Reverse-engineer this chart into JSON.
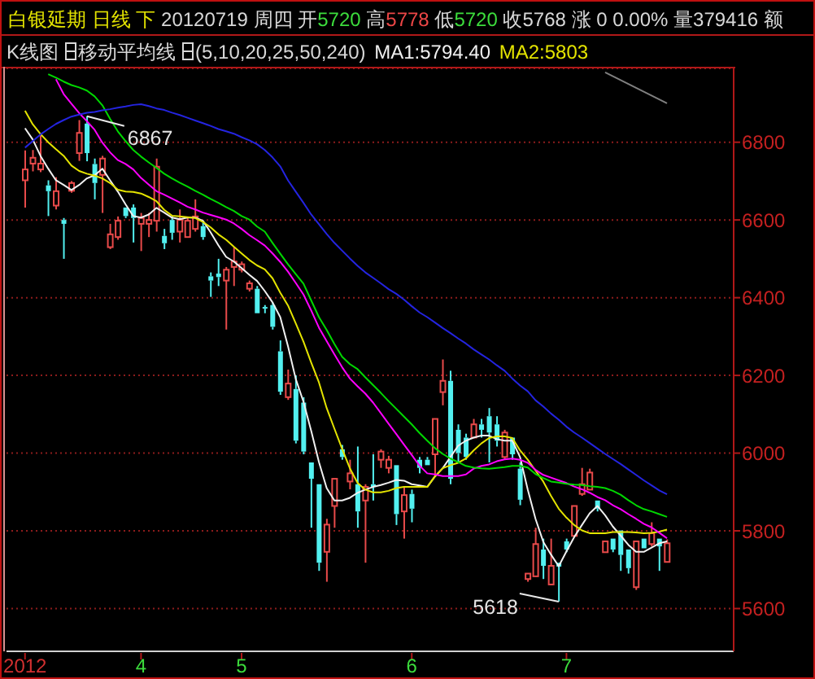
{
  "chart_data": {
    "type": "candlestick",
    "title": "白银延期 日线 下",
    "subtitle": "20120719 周四 开5720 高5778 低5720 收5768 涨 0 0.00% 量379416 额",
    "annotations": [
      "K线图",
      "移动平均线",
      "(5,10,20,25,50,240)",
      "6867",
      "5618"
    ],
    "categories": [
      "2012",
      null,
      null,
      null,
      null,
      null,
      null,
      null,
      null,
      null,
      null,
      null,
      null,
      null,
      null,
      "4",
      null,
      null,
      null,
      null,
      null,
      null,
      null,
      null,
      null,
      null,
      null,
      null,
      "5",
      null,
      null,
      null,
      null,
      null,
      null,
      null,
      null,
      null,
      null,
      null,
      null,
      null,
      null,
      null,
      null,
      null,
      null,
      null,
      null,
      null,
      "6",
      null,
      null,
      null,
      null,
      null,
      null,
      null,
      null,
      null,
      null,
      null,
      null,
      null,
      null,
      null,
      null,
      null,
      null,
      null,
      "7",
      null,
      null,
      null,
      null,
      null,
      null,
      null,
      null,
      null,
      null,
      null,
      null,
      null
    ],
    "ohlc": [
      [
        6702,
        6779,
        6632,
        6730
      ],
      [
        6745,
        6780,
        6725,
        6760
      ],
      [
        6730,
        6820,
        6723,
        6745
      ],
      [
        6689,
        6702,
        6610,
        6674
      ],
      [
        6637,
        6710,
        6627,
        6674
      ],
      [
        6600,
        6605,
        6500,
        6590
      ],
      [
        6675,
        6700,
        6670,
        6695
      ],
      [
        6772,
        6857,
        6752,
        6824
      ],
      [
        6848,
        6867,
        6751,
        6772
      ],
      [
        6744,
        6758,
        6653,
        6695
      ],
      [
        6716,
        6765,
        6618,
        6758
      ],
      [
        6530,
        6590,
        6525,
        6563
      ],
      [
        6556,
        6609,
        6549,
        6598
      ],
      [
        6632,
        6635,
        6605,
        6610
      ],
      [
        6632,
        6640,
        6542,
        6605
      ],
      [
        6590,
        6618,
        6520,
        6605
      ],
      [
        6590,
        6618,
        6556,
        6600
      ],
      [
        6598,
        6758,
        6570,
        6737
      ],
      [
        6559,
        6577,
        6525,
        6540
      ],
      [
        6600,
        6609,
        6549,
        6567
      ],
      [
        6570,
        6627,
        6542,
        6600
      ],
      [
        6556,
        6605,
        6553,
        6598
      ],
      [
        6577,
        6653,
        6570,
        6609
      ],
      [
        6584,
        6598,
        6549,
        6556
      ],
      [
        6455,
        6465,
        6402,
        6444
      ],
      [
        6462,
        6500,
        6430,
        6453
      ],
      [
        6444,
        6479,
        6318,
        6472
      ],
      [
        6479,
        6531,
        6430,
        6493
      ],
      [
        6472,
        6493,
        6465,
        6486
      ],
      [
        6423,
        6444,
        6416,
        6437
      ],
      [
        6423,
        6430,
        6360,
        6360
      ],
      [
        6376,
        6381,
        6360,
        6372
      ],
      [
        6381,
        6388,
        6318,
        6325
      ],
      [
        6262,
        6290,
        6150,
        6158
      ],
      [
        6144,
        6215,
        6137,
        6179
      ],
      [
        6165,
        6200,
        6025,
        6032
      ],
      [
        6130,
        6144,
        5997,
        6004
      ],
      [
        5976,
        5976,
        5808,
        5934
      ],
      [
        5920,
        5920,
        5697,
        5718
      ],
      [
        5746,
        5831,
        5669,
        5816
      ],
      [
        5864,
        5934,
        5808,
        5934
      ],
      [
        6010,
        6021,
        5983,
        5990
      ],
      [
        5927,
        5983,
        5907,
        5948
      ],
      [
        5920,
        6017,
        5808,
        5850
      ],
      [
        5878,
        5920,
        5718,
        5913
      ],
      [
        5920,
        5997,
        5878,
        5913
      ],
      [
        5983,
        6010,
        5962,
        6004
      ],
      [
        5962,
        5993,
        5948,
        5983
      ],
      [
        5969,
        5969,
        5815,
        5843
      ],
      [
        5850,
        5913,
        5780,
        5892
      ],
      [
        5895,
        5906,
        5822,
        5857
      ],
      [
        5983,
        5990,
        5948,
        5962
      ],
      [
        5983,
        5990,
        5966,
        5969
      ],
      [
        5997,
        6088,
        5941,
        6088
      ],
      [
        6157,
        6241,
        6123,
        6186
      ],
      [
        6186,
        6212,
        5920,
        5934
      ],
      [
        6060,
        6074,
        5976,
        6000
      ],
      [
        6040,
        6050,
        5983,
        5990
      ],
      [
        6040,
        6088,
        6040,
        6074
      ],
      [
        6074,
        6088,
        6040,
        6060
      ],
      [
        6095,
        6116,
        5976,
        6053
      ],
      [
        6074,
        6095,
        6017,
        6032
      ],
      [
        5990,
        6060,
        5983,
        6053
      ],
      [
        6040,
        6040,
        5983,
        5997
      ],
      [
        5960,
        5976,
        5866,
        5880
      ],
      [
        5676,
        5690,
        5669,
        5690
      ],
      [
        5683,
        5808,
        5683,
        5766
      ],
      [
        5752,
        5780,
        5676,
        5710
      ],
      [
        5662,
        5780,
        5662,
        5710
      ],
      [
        5718,
        5722,
        5618,
        5708
      ],
      [
        5773,
        5780,
        5745,
        5752
      ],
      [
        5787,
        5864,
        5787,
        5864
      ],
      [
        5895,
        5962,
        5890,
        5920
      ],
      [
        5906,
        5960,
        5906,
        5950
      ],
      [
        5878,
        5880,
        5850,
        5857
      ],
      [
        5745,
        5773,
        5745,
        5773
      ],
      [
        5780,
        5780,
        5745,
        5752
      ],
      [
        5801,
        5801,
        5697,
        5738
      ],
      [
        5752,
        5752,
        5690,
        5704
      ],
      [
        5655,
        5773,
        5648,
        5773
      ],
      [
        5780,
        5783,
        5752,
        5755
      ],
      [
        5766,
        5822,
        5760,
        5794
      ],
      [
        5780,
        5780,
        5697,
        5760
      ],
      [
        5720,
        5778,
        5720,
        5768
      ]
    ],
    "colors": [
      "#e84a4a",
      "#e84a4a",
      "#e84a4a",
      "#52f0f0",
      "#e84a4a",
      "#52f0f0",
      "#e84a4a",
      "#e84a4a",
      "#52f0f0",
      "#52f0f0",
      "#e84a4a",
      "#e84a4a",
      "#e84a4a",
      "#52f0f0",
      "#52f0f0",
      "#e84a4a",
      "#e84a4a",
      "#e84a4a",
      "#52f0f0",
      "#52f0f0",
      "#e84a4a",
      "#e84a4a",
      "#e84a4a",
      "#52f0f0",
      "#52f0f0",
      "#52f0f0",
      "#e84a4a",
      "#e84a4a",
      "#e84a4a",
      "#e84a4a",
      "#52f0f0",
      "#52f0f0",
      "#52f0f0",
      "#52f0f0",
      "#e84a4a",
      "#52f0f0",
      "#52f0f0",
      "#52f0f0",
      "#52f0f0",
      "#e84a4a",
      "#e84a4a",
      "#52f0f0",
      "#e84a4a",
      "#52f0f0",
      "#e84a4a",
      "#52f0f0",
      "#e84a4a",
      "#e84a4a",
      "#52f0f0",
      "#e84a4a",
      "#52f0f0",
      "#52f0f0",
      "#52f0f0",
      "#e84a4a",
      "#e84a4a",
      "#52f0f0",
      "#52f0f0",
      "#52f0f0",
      "#e84a4a",
      "#52f0f0",
      "#52f0f0",
      "#52f0f0",
      "#e84a4a",
      "#52f0f0",
      "#52f0f0",
      "#e84a4a",
      "#e84a4a",
      "#52f0f0",
      "#e84a4a",
      "#52f0f0",
      "#52f0f0",
      "#e84a4a",
      "#e84a4a",
      "#e84a4a",
      "#52f0f0",
      "#e84a4a",
      "#52f0f0",
      "#52f0f0",
      "#52f0f0",
      "#e84a4a",
      "#52f0f0",
      "#e84a4a",
      "#52f0f0",
      "#e84a4a"
    ],
    "series": [
      {
        "type": "line",
        "name": "MA1:5794.40",
        "color": "#f0f0f0",
        "values": [
          6836,
          6807,
          6765,
          6732,
          6702,
          6690,
          6677,
          6690,
          6707,
          6715,
          6732,
          6702,
          6673,
          6640,
          6610,
          6606,
          6614,
          6631,
          6619,
          6606,
          6602,
          6606,
          6606,
          6598,
          6568,
          6535,
          6505,
          6493,
          6476,
          6459,
          6443,
          6417,
          6388,
          6350,
          6275,
          6191,
          6132,
          6057,
          5977,
          5910,
          5878,
          5878,
          5885,
          5898,
          5906,
          5913,
          5918,
          5924,
          5931,
          5929,
          5920,
          5917,
          5913,
          5940,
          5961,
          5990,
          6019,
          6032,
          6040,
          6045,
          6045,
          6036,
          6032,
          6032,
          5990,
          5906,
          5831,
          5772,
          5739,
          5709,
          5747,
          5784,
          5815,
          5845,
          5864,
          5840,
          5811,
          5788,
          5764,
          5746,
          5746,
          5757,
          5768,
          5773
        ]
      },
      {
        "type": "line",
        "name": "MA2:5803",
        "color": "#e4e400",
        "values": [
          6881,
          6846,
          6821,
          6800,
          6782,
          6765,
          6740,
          6726,
          6719,
          6714,
          6707,
          6695,
          6678,
          6673,
          6672,
          6668,
          6659,
          6648,
          6626,
          6611,
          6609,
          6607,
          6605,
          6595,
          6581,
          6563,
          6549,
          6531,
          6514,
          6497,
          6483,
          6473,
          6450,
          6413,
          6380,
          6334,
          6287,
          6233,
          6182,
          6116,
          6063,
          6011,
          5961,
          5923,
          5906,
          5899,
          5899,
          5903,
          5910,
          5913,
          5913,
          5913,
          5913,
          5940,
          5961,
          5969,
          5975,
          5986,
          6007,
          6025,
          6039,
          6043,
          6043,
          6039,
          6007,
          5983,
          5955,
          5927,
          5890,
          5857,
          5834,
          5815,
          5801,
          5794,
          5794,
          5794,
          5797,
          5797,
          5797,
          5796,
          5794,
          5795,
          5798,
          5803
        ]
      },
      {
        "type": "line",
        "color": "#ff00ff",
        "values": [
          null,
          null,
          null,
          null,
          6962,
          6924,
          6899,
          6875,
          6854,
          6832,
          6799,
          6774,
          6754,
          6744,
          6730,
          6708,
          6691,
          6674,
          6665,
          6655,
          6645,
          6634,
          6627,
          6619,
          6613,
          6607,
          6601,
          6591,
          6577,
          6561,
          6548,
          6534,
          6514,
          6492,
          6467,
          6438,
          6408,
          6367,
          6323,
          6288,
          6254,
          6221,
          6192,
          6172,
          6153,
          6130,
          6103,
          6076,
          6049,
          6022,
          5995,
          5968,
          5948,
          5945,
          5941,
          5941,
          5941,
          5945,
          5960,
          5967,
          5971,
          5979,
          5984,
          5986,
          5983,
          5975,
          5957,
          5944,
          5937,
          5930,
          5923,
          5914,
          5907,
          5898,
          5887,
          5879,
          5866,
          5856,
          5843,
          5831,
          5818,
          5809,
          5795,
          5781
        ]
      },
      {
        "type": "line",
        "color": "#00d800",
        "values": [
          null,
          null,
          null,
          6975,
          6966,
          6956,
          6947,
          6941,
          6933,
          6918,
          6895,
          6860,
          6828,
          6803,
          6780,
          6763,
          6748,
          6734,
          6719,
          6707,
          6696,
          6686,
          6675,
          6665,
          6654,
          6644,
          6633,
          6623,
          6610,
          6601,
          6583,
          6570,
          6541,
          6513,
          6486,
          6461,
          6436,
          6393,
          6350,
          6317,
          6281,
          6248,
          6229,
          6216,
          6195,
          6175,
          6155,
          6134,
          6114,
          6094,
          6074,
          6052,
          6032,
          6013,
          5998,
          5986,
          5977,
          5967,
          5963,
          5961,
          5960,
          5962,
          5964,
          5967,
          5967,
          5963,
          5946,
          5936,
          5927,
          5924,
          5921,
          5919,
          5918,
          5915,
          5913,
          5910,
          5903,
          5893,
          5879,
          5866,
          5856,
          5850,
          5843,
          5836
        ]
      },
      {
        "type": "line",
        "color": "#2424e0",
        "values": [
          6786,
          6803,
          6820,
          6834,
          6847,
          6857,
          6866,
          6871,
          6876,
          6878,
          6882,
          6885,
          6889,
          6892,
          6896,
          6898,
          6893,
          6887,
          6883,
          6876,
          6870,
          6863,
          6856,
          6849,
          6842,
          6834,
          6828,
          6822,
          6813,
          6805,
          6795,
          6780,
          6761,
          6738,
          6702,
          6673,
          6644,
          6614,
          6589,
          6564,
          6541,
          6521,
          6501,
          6482,
          6465,
          6451,
          6437,
          6422,
          6410,
          6395,
          6378,
          6362,
          6350,
          6336,
          6322,
          6309,
          6295,
          6282,
          6267,
          6254,
          6241,
          6226,
          6212,
          6192,
          6174,
          6159,
          6136,
          6120,
          6102,
          6086,
          6068,
          6053,
          6040,
          6026,
          6012,
          5998,
          5985,
          5972,
          5958,
          5944,
          5930,
          5917,
          5904,
          5894
        ]
      },
      {
        "type": "line",
        "color": "#808080",
        "values": [
          null,
          null,
          null,
          null,
          null,
          null,
          null,
          null,
          null,
          null,
          null,
          null,
          null,
          null,
          null,
          null,
          null,
          null,
          null,
          null,
          null,
          null,
          null,
          null,
          null,
          null,
          null,
          null,
          null,
          null,
          null,
          null,
          null,
          null,
          null,
          null,
          null,
          null,
          null,
          null,
          null,
          null,
          null,
          null,
          null,
          null,
          null,
          null,
          null,
          null,
          null,
          null,
          null,
          null,
          null,
          null,
          null,
          null,
          null,
          null,
          null,
          null,
          null,
          null,
          null,
          null,
          null,
          null,
          null,
          null,
          null,
          null,
          null,
          null,
          null,
          6980,
          6970,
          6960,
          6950,
          6940,
          6930,
          6920,
          6910,
          6900
        ]
      }
    ],
    "ylim": [
      5490,
      6990
    ],
    "yticks": [
      5600,
      5800,
      6000,
      6200,
      6400,
      6600,
      6800
    ],
    "grid": "y",
    "legend": "top right"
  }
}
